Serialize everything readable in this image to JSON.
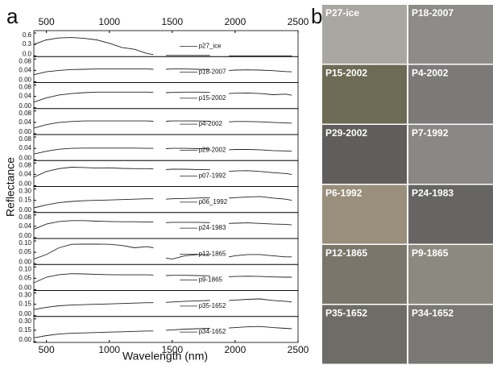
{
  "panel_a_label": "a",
  "panel_b_label": "b",
  "chart_data": {
    "type": "line",
    "x_label": "Wavelength (nm)",
    "y_label": "Reflectance",
    "xlim": [
      400,
      2500
    ],
    "xticks": [
      500,
      1000,
      1500,
      2000,
      2500
    ],
    "x": [
      400,
      500,
      600,
      700,
      800,
      900,
      1000,
      1100,
      1200,
      1300,
      1350,
      1400,
      1450,
      1500,
      1600,
      1700,
      1800,
      1875,
      1950,
      2000,
      2100,
      2200,
      2300,
      2400,
      2450
    ],
    "series": [
      {
        "name": "p27_ice",
        "color": "#222222",
        "ylim": [
          0,
          0.6
        ],
        "yticks": [
          {
            "value": 0,
            "label": "0.0"
          },
          0.3,
          0.6
        ],
        "values": [
          0.3,
          0.42,
          0.47,
          0.48,
          0.46,
          0.42,
          0.33,
          0.22,
          0.17,
          0.06,
          0.03,
          null,
          0.01,
          0.01,
          0.01,
          0.01,
          0.01,
          null,
          0.0,
          0.0,
          0.0,
          0.0,
          0.0,
          0.0,
          0.0
        ]
      },
      {
        "name": "p18-2007",
        "color": "#222222",
        "ylim": [
          0,
          0.08
        ],
        "yticks": [
          {
            "value": 0,
            "label": "0.00"
          },
          0.04,
          0.08
        ],
        "values": [
          0.025,
          0.035,
          0.04,
          0.043,
          0.044,
          0.045,
          0.045,
          0.045,
          0.045,
          0.045,
          0.044,
          null,
          0.044,
          0.045,
          0.045,
          0.044,
          0.043,
          null,
          0.04,
          0.041,
          0.042,
          0.041,
          0.039,
          0.036,
          0.035
        ]
      },
      {
        "name": "p15-2002",
        "color": "#222222",
        "ylim": [
          0,
          0.08
        ],
        "yticks": [
          {
            "value": 0,
            "label": "0.00"
          },
          0.04,
          0.08
        ],
        "values": [
          0.02,
          0.035,
          0.045,
          0.05,
          0.053,
          0.055,
          0.055,
          0.055,
          0.055,
          0.055,
          0.054,
          null,
          0.053,
          0.054,
          0.055,
          0.055,
          0.054,
          null,
          0.05,
          0.051,
          0.052,
          0.05,
          0.046,
          0.048,
          0.044
        ]
      },
      {
        "name": "p4-2002",
        "color": "#222222",
        "ylim": [
          0,
          0.08
        ],
        "yticks": [
          {
            "value": 0,
            "label": "0.00"
          },
          0.04,
          0.08
        ],
        "values": [
          0.02,
          0.032,
          0.04,
          0.043,
          0.045,
          0.045,
          0.045,
          0.045,
          0.045,
          0.045,
          0.044,
          null,
          0.044,
          0.045,
          0.045,
          0.045,
          0.044,
          null,
          0.042,
          0.043,
          0.043,
          0.042,
          0.04,
          0.038,
          0.037
        ]
      },
      {
        "name": "p29-2002",
        "color": "#222222",
        "ylim": [
          0,
          0.08
        ],
        "yticks": [
          {
            "value": 0,
            "label": "0.00"
          },
          0.04,
          0.08
        ],
        "values": [
          0.02,
          0.03,
          0.037,
          0.04,
          0.041,
          0.041,
          0.041,
          0.041,
          0.041,
          0.04,
          0.04,
          null,
          0.039,
          0.04,
          0.04,
          0.039,
          0.038,
          null,
          0.035,
          0.036,
          0.036,
          0.035,
          0.032,
          0.031,
          0.03
        ]
      },
      {
        "name": "p07-1992",
        "color": "#222222",
        "ylim": [
          0,
          0.08
        ],
        "yticks": [
          {
            "value": 0,
            "label": "0.00"
          },
          0.04,
          0.08
        ],
        "values": [
          0.03,
          0.05,
          0.06,
          0.065,
          0.064,
          0.062,
          0.063,
          0.061,
          0.06,
          0.06,
          0.059,
          null,
          0.057,
          0.058,
          0.058,
          0.057,
          0.056,
          null,
          0.05,
          0.052,
          0.053,
          0.05,
          0.046,
          0.043,
          0.04
        ]
      },
      {
        "name": "p06_1992",
        "color": "#222222",
        "ylim": [
          0,
          0.3
        ],
        "yticks": [
          {
            "value": 0,
            "label": "0.00"
          },
          0.15,
          {
            "value": 0.3,
            "label": "0.30"
          }
        ],
        "values": [
          0.05,
          0.09,
          0.12,
          0.135,
          0.145,
          0.15,
          0.155,
          0.16,
          0.165,
          0.17,
          0.17,
          null,
          0.165,
          0.17,
          0.175,
          0.18,
          0.185,
          null,
          0.18,
          0.185,
          0.195,
          0.2,
          0.18,
          0.165,
          0.15
        ]
      },
      {
        "name": "p24-1983",
        "color": "#222222",
        "ylim": [
          0,
          0.08
        ],
        "yticks": [
          {
            "value": 0,
            "label": "0.00"
          },
          0.04,
          0.08
        ],
        "values": [
          0.03,
          0.048,
          0.057,
          0.06,
          0.06,
          0.058,
          0.057,
          0.056,
          0.056,
          0.055,
          0.055,
          null,
          0.053,
          0.054,
          0.054,
          0.054,
          0.053,
          null,
          0.05,
          0.051,
          0.052,
          0.05,
          0.048,
          0.047,
          0.045
        ]
      },
      {
        "name": "p12-1865",
        "color": "#222222",
        "ylim": [
          0,
          0.1
        ],
        "yticks": [
          {
            "value": 0,
            "label": "0.00"
          },
          0.05,
          {
            "value": 0.1,
            "label": "0.10"
          }
        ],
        "values": [
          0.02,
          0.04,
          0.07,
          0.085,
          0.086,
          0.086,
          0.085,
          0.08,
          0.07,
          0.075,
          0.07,
          null,
          0.025,
          0.02,
          0.035,
          0.04,
          0.04,
          null,
          0.03,
          0.035,
          0.04,
          0.04,
          0.035,
          0.03,
          0.03
        ]
      },
      {
        "name": "p9-1865",
        "color": "#222222",
        "ylim": [
          0,
          0.1
        ],
        "yticks": [
          {
            "value": 0,
            "label": "0.00"
          },
          0.05,
          {
            "value": 0.1,
            "label": "0.10"
          }
        ],
        "values": [
          0.03,
          0.055,
          0.066,
          0.07,
          0.069,
          0.067,
          0.066,
          0.065,
          0.065,
          0.065,
          0.064,
          null,
          0.062,
          0.063,
          0.063,
          0.062,
          0.061,
          null,
          0.057,
          0.058,
          0.059,
          0.058,
          0.056,
          0.055,
          0.055
        ]
      },
      {
        "name": "p35-1652",
        "color": "#222222",
        "ylim": [
          0,
          0.3
        ],
        "yticks": [
          {
            "value": 0,
            "label": "0.00"
          },
          0.15,
          {
            "value": 0.3,
            "label": "0.30"
          }
        ],
        "values": [
          0.08,
          0.11,
          0.13,
          0.14,
          0.145,
          0.15,
          0.155,
          0.16,
          0.165,
          0.17,
          0.17,
          null,
          0.175,
          0.18,
          0.19,
          0.195,
          0.2,
          null,
          0.2,
          0.205,
          0.215,
          0.22,
          0.2,
          0.19,
          0.18
        ]
      },
      {
        "name": "p34-1652",
        "color": "#222222",
        "ylim": [
          0,
          0.3
        ],
        "yticks": [
          {
            "value": 0,
            "label": "0.00"
          },
          0.15,
          {
            "value": 0.3,
            "label": "0.30"
          }
        ],
        "values": [
          0.05,
          0.08,
          0.1,
          0.11,
          0.115,
          0.12,
          0.125,
          0.13,
          0.135,
          0.14,
          0.14,
          null,
          0.15,
          0.155,
          0.165,
          0.17,
          0.175,
          null,
          0.18,
          0.185,
          0.195,
          0.2,
          0.185,
          0.175,
          0.17
        ]
      }
    ]
  },
  "photos": [
    "P27-ice",
    "P18-2007",
    "P15-2002",
    "P4-2002",
    "P29-2002",
    "P7-1992",
    "P6-1992",
    "P24-1983",
    "P12-1865",
    "P9-1865",
    "P35-1652",
    "P34-1652"
  ]
}
